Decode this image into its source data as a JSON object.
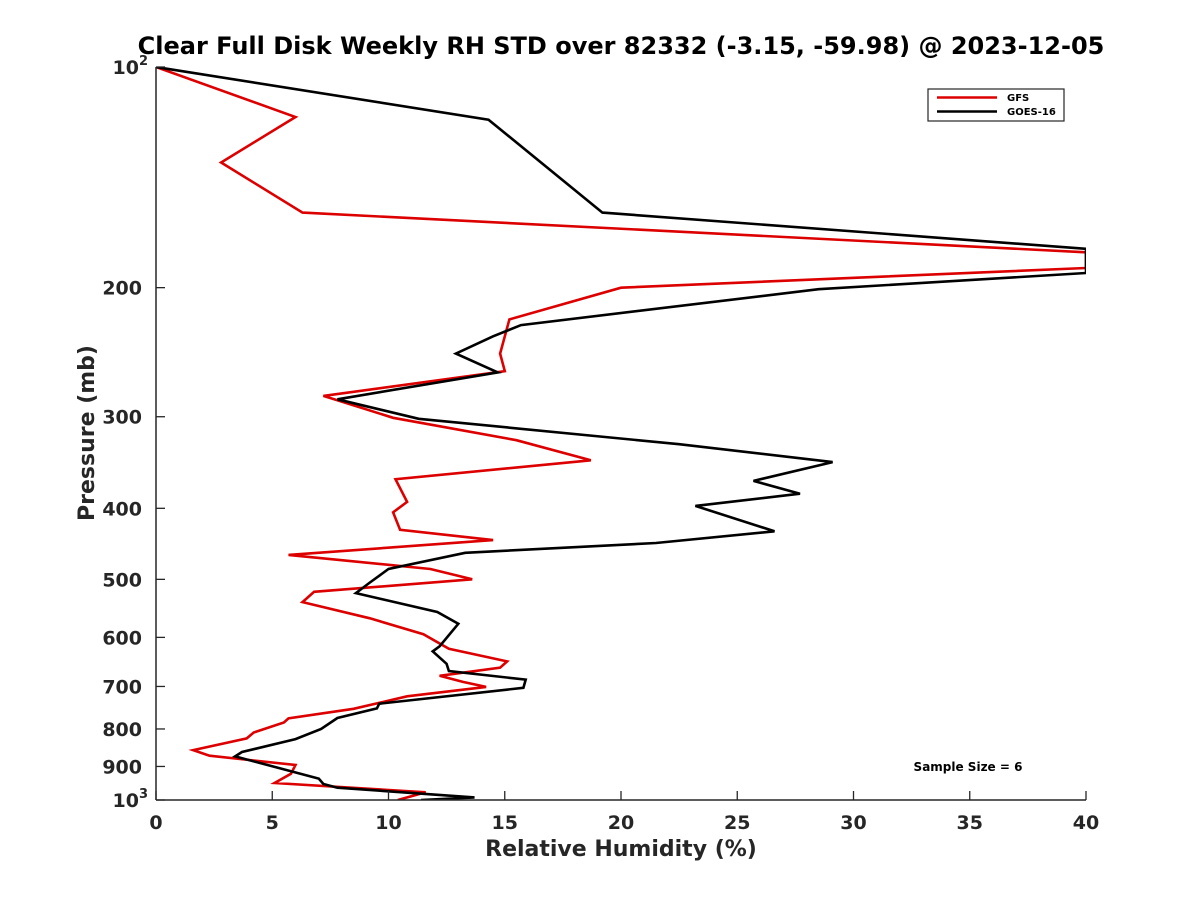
{
  "chart_data": {
    "type": "line",
    "title": "Clear Full Disk Weekly RH STD over 82332 (-3.15, -59.98) @ 2023-12-05",
    "xlabel": "Relative Humidity (%)",
    "ylabel": "Pressure (mb)",
    "xlim": [
      0,
      40
    ],
    "ylim": [
      100,
      1000
    ],
    "y_scale": "log",
    "y_reversed": true,
    "x_ticks": [
      0,
      5,
      10,
      15,
      20,
      25,
      30,
      35,
      40
    ],
    "x_tick_labels": [
      "0",
      "5",
      "10",
      "15",
      "20",
      "25",
      "30",
      "35",
      "40"
    ],
    "y_ticks": [
      {
        "value": 100,
        "base": "10",
        "exp": "2"
      },
      {
        "value": 200,
        "label": "200"
      },
      {
        "value": 300,
        "label": "300"
      },
      {
        "value": 400,
        "label": "400"
      },
      {
        "value": 500,
        "label": "500"
      },
      {
        "value": 600,
        "label": "600"
      },
      {
        "value": 700,
        "label": "700"
      },
      {
        "value": 800,
        "label": "800"
      },
      {
        "value": 900,
        "label": "900"
      },
      {
        "value": 1000,
        "base": "10",
        "exp": "3"
      }
    ],
    "grid": false,
    "legend_placement": "top-right",
    "annotation": "Sample Size = 6",
    "series": [
      {
        "name": "GFS",
        "color": "#dd0000",
        "points": [
          [
            0,
            100
          ],
          [
            6,
            117
          ],
          [
            2.8,
            135
          ],
          [
            6.3,
            158
          ],
          [
            40,
            179
          ],
          [
            40,
            188
          ],
          [
            20,
            200
          ],
          [
            15.2,
            221
          ],
          [
            14.8,
            246
          ],
          [
            15,
            260
          ],
          [
            7.2,
            281
          ],
          [
            10.2,
            301
          ],
          [
            15.5,
            323
          ],
          [
            18.7,
            344
          ],
          [
            10.3,
            365
          ],
          [
            10.8,
            392
          ],
          [
            10.2,
            405
          ],
          [
            10.5,
            428
          ],
          [
            14.5,
            442
          ],
          [
            5.7,
            463
          ],
          [
            11.8,
            484
          ],
          [
            13.6,
            500
          ],
          [
            6.8,
            520
          ],
          [
            6.3,
            537
          ],
          [
            9.2,
            565
          ],
          [
            11.5,
            594
          ],
          [
            12.6,
            622
          ],
          [
            15.1,
            647
          ],
          [
            14.8,
            660
          ],
          [
            12.2,
            677
          ],
          [
            13.2,
            690
          ],
          [
            14.2,
            701
          ],
          [
            10.8,
            722
          ],
          [
            8.5,
            751
          ],
          [
            5.7,
            774
          ],
          [
            5.5,
            784
          ],
          [
            4.2,
            809
          ],
          [
            3.9,
            824
          ],
          [
            1.6,
            855
          ],
          [
            2.3,
            870
          ],
          [
            6,
            896
          ],
          [
            5.8,
            921
          ],
          [
            5.1,
            948
          ],
          [
            11.6,
            976
          ],
          [
            10.4,
            1000
          ]
        ]
      },
      {
        "name": "GOES-16",
        "color": "#000000",
        "points": [
          [
            0,
            100
          ],
          [
            14.3,
            118
          ],
          [
            19.2,
            158
          ],
          [
            40,
            177
          ],
          [
            40,
            191
          ],
          [
            28.5,
            201
          ],
          [
            15.7,
            225
          ],
          [
            14.5,
            233
          ],
          [
            12.9,
            246
          ],
          [
            14.7,
            261
          ],
          [
            7.8,
            284
          ],
          [
            11.3,
            302
          ],
          [
            22.5,
            327
          ],
          [
            29.1,
            346
          ],
          [
            25.7,
            367
          ],
          [
            27.7,
            382
          ],
          [
            23.2,
            397
          ],
          [
            26.6,
            430
          ],
          [
            21.5,
            446
          ],
          [
            13.3,
            460
          ],
          [
            10,
            484
          ],
          [
            9.2,
            505
          ],
          [
            8.6,
            522
          ],
          [
            12.1,
            554
          ],
          [
            13,
            575
          ],
          [
            12.2,
            617
          ],
          [
            11.9,
            627
          ],
          [
            12.5,
            652
          ],
          [
            12.6,
            667
          ],
          [
            15.9,
            685
          ],
          [
            15.8,
            703
          ],
          [
            9.6,
            739
          ],
          [
            9.5,
            750
          ],
          [
            7.8,
            773
          ],
          [
            7.1,
            800
          ],
          [
            6,
            826
          ],
          [
            3.7,
            860
          ],
          [
            3.4,
            872
          ],
          [
            7,
            935
          ],
          [
            7.2,
            951
          ],
          [
            7.8,
            962
          ],
          [
            13.7,
            992
          ],
          [
            11.4,
            1000
          ]
        ]
      }
    ]
  }
}
